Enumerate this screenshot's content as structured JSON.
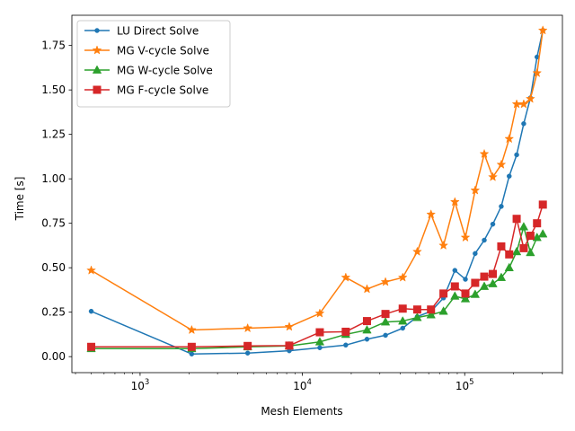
{
  "chart_data": {
    "type": "line",
    "title": "",
    "xlabel": "Mesh Elements",
    "ylabel": "Time [s]",
    "xscale": "log",
    "xlim": [
      380,
      400000
    ],
    "ylim": [
      -0.09,
      1.92
    ],
    "x_ticks": [
      {
        "value": 1000,
        "base": "10",
        "exp": "3"
      },
      {
        "value": 10000,
        "base": "10",
        "exp": "4"
      },
      {
        "value": 100000,
        "base": "10",
        "exp": "5"
      }
    ],
    "y_ticks": [
      {
        "value": 0.0,
        "label": "0.00"
      },
      {
        "value": 0.25,
        "label": "0.25"
      },
      {
        "value": 0.5,
        "label": "0.50"
      },
      {
        "value": 0.75,
        "label": "0.75"
      },
      {
        "value": 1.0,
        "label": "1.00"
      },
      {
        "value": 1.25,
        "label": "1.25"
      },
      {
        "value": 1.5,
        "label": "1.50"
      },
      {
        "value": 1.75,
        "label": "1.75"
      }
    ],
    "grid": false,
    "legend_position": "top-left",
    "series": [
      {
        "name": "LU Direct Solve",
        "color": "#1f77b4",
        "marker": "circle",
        "x": [
          500,
          2080,
          4600,
          8300,
          12800,
          18500,
          25000,
          32500,
          41500,
          51000,
          62000,
          74000,
          87000,
          101000,
          116000,
          132000,
          149000,
          168000,
          188000,
          209000,
          231000,
          254000,
          279000,
          303000
        ],
        "y": [
          0.255,
          0.015,
          0.02,
          0.033,
          0.05,
          0.065,
          0.098,
          0.12,
          0.16,
          0.225,
          0.255,
          0.33,
          0.485,
          0.435,
          0.58,
          0.655,
          0.745,
          0.845,
          1.015,
          1.135,
          1.31,
          1.455,
          1.685,
          1.835
        ]
      },
      {
        "name": "MG V-cycle Solve",
        "color": "#ff7f0e",
        "marker": "star",
        "x": [
          500,
          2080,
          4600,
          8300,
          12800,
          18500,
          25000,
          32500,
          41500,
          51000,
          62000,
          74000,
          87000,
          101000,
          116000,
          132000,
          149000,
          168000,
          188000,
          209000,
          231000,
          254000,
          279000,
          303000
        ],
        "y": [
          0.485,
          0.15,
          0.16,
          0.168,
          0.243,
          0.445,
          0.38,
          0.42,
          0.445,
          0.59,
          0.8,
          0.625,
          0.87,
          0.67,
          0.935,
          1.14,
          1.01,
          1.08,
          1.225,
          1.42,
          1.42,
          1.45,
          1.595,
          1.835
        ]
      },
      {
        "name": "MG W-cycle Solve",
        "color": "#2ca02c",
        "marker": "triangle",
        "x": [
          500,
          2080,
          4600,
          8300,
          12800,
          18500,
          25000,
          32500,
          41500,
          51000,
          62000,
          74000,
          87000,
          101000,
          116000,
          132000,
          149000,
          168000,
          188000,
          209000,
          231000,
          254000,
          279000,
          303000
        ],
        "y": [
          0.045,
          0.045,
          0.055,
          0.06,
          0.083,
          0.125,
          0.15,
          0.195,
          0.2,
          0.22,
          0.235,
          0.255,
          0.34,
          0.325,
          0.35,
          0.395,
          0.41,
          0.445,
          0.5,
          0.59,
          0.73,
          0.585,
          0.67,
          0.69
        ]
      },
      {
        "name": "MG F-cycle Solve",
        "color": "#d62728",
        "marker": "square",
        "x": [
          500,
          2080,
          4600,
          8300,
          12800,
          18500,
          25000,
          32500,
          41500,
          51000,
          62000,
          74000,
          87000,
          101000,
          116000,
          132000,
          149000,
          168000,
          188000,
          209000,
          231000,
          254000,
          279000,
          303000
        ],
        "y": [
          0.055,
          0.055,
          0.06,
          0.062,
          0.137,
          0.14,
          0.2,
          0.24,
          0.27,
          0.265,
          0.265,
          0.355,
          0.395,
          0.355,
          0.415,
          0.45,
          0.465,
          0.62,
          0.575,
          0.775,
          0.61,
          0.68,
          0.75,
          0.855
        ]
      }
    ]
  }
}
